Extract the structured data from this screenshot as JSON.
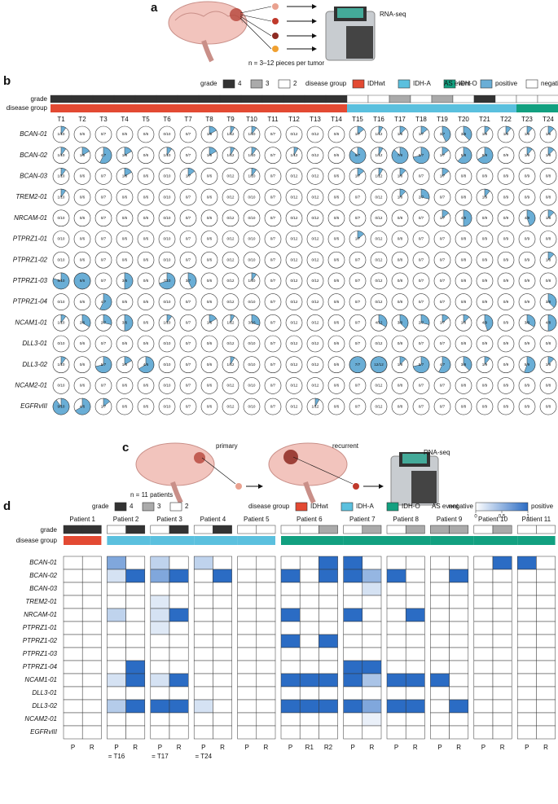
{
  "panel_a": {
    "label": "a",
    "method": "RNA-seq",
    "note": "n = 3–12 pieces per tumor"
  },
  "panel_b": {
    "label": "b",
    "legend": {
      "grade_title": "grade",
      "grades": [
        {
          "label": "4",
          "color": "#333333"
        },
        {
          "label": "3",
          "color": "#aaaaaa"
        },
        {
          "label": "2",
          "color": "#ffffff"
        }
      ],
      "group_title": "disease group",
      "groups": [
        {
          "label": "IDHwt",
          "color": "#e34a33"
        },
        {
          "label": "IDH-A",
          "color": "#5bc0de"
        },
        {
          "label": "IDH-O",
          "color": "#12a080"
        }
      ],
      "event_title": "AS event",
      "events": [
        {
          "label": "positive",
          "color": "#6aaed6"
        },
        {
          "label": "negative",
          "color": "#ffffff"
        }
      ]
    },
    "row_grade": "grade",
    "row_group": "disease group",
    "tumors": [
      "T1",
      "T2",
      "T3",
      "T4",
      "T5",
      "T6",
      "T7",
      "T8",
      "T9",
      "T10",
      "T11",
      "T12",
      "T13",
      "T14",
      "T15",
      "T16",
      "T17",
      "T18",
      "T19",
      "T20",
      "T21",
      "T22",
      "T23",
      "T24"
    ],
    "grade": [
      "4",
      "4",
      "4",
      "4",
      "4",
      "4",
      "4",
      "4",
      "4",
      "4",
      "4",
      "4",
      "4",
      "4",
      "2",
      "2",
      "3",
      "2",
      "3",
      "2",
      "4",
      "2",
      "2",
      "2"
    ],
    "group": [
      "IDHwt",
      "IDHwt",
      "IDHwt",
      "IDHwt",
      "IDHwt",
      "IDHwt",
      "IDHwt",
      "IDHwt",
      "IDHwt",
      "IDHwt",
      "IDHwt",
      "IDHwt",
      "IDHwt",
      "IDHwt",
      "IDH-A",
      "IDH-A",
      "IDH-A",
      "IDH-A",
      "IDH-A",
      "IDH-A",
      "IDH-A",
      "IDH-A",
      "IDH-O",
      "IDH-O"
    ],
    "genes": [
      "BCAN-01",
      "BCAN-02",
      "BCAN-03",
      "TREM2-01",
      "NRCAM-01",
      "PTPRZ1-01",
      "PTPRZ1-02",
      "PTPRZ1-03",
      "PTPRZ1-04",
      "NCAM1-01",
      "DLL3-01",
      "DLL3-02",
      "NCAM2-01",
      "EGFRvIII"
    ],
    "pies": [
      [
        "1/10",
        "0/6",
        "0/7",
        "0/6",
        "0/6",
        "0/10",
        "0/7",
        "1/6",
        "1/12",
        "1/10",
        "0/7",
        "0/12",
        "0/12",
        "0/6",
        "1/7",
        "1/12",
        "1/8",
        "1/7",
        "3/7",
        "3/8",
        "1/9",
        "1/9",
        "1/9",
        "1/8"
      ],
      [
        "1/10",
        "1/6",
        "4/7",
        "1/6",
        "0/6",
        "1/10",
        "0/7",
        "1/6",
        "1/12",
        "1/10",
        "0/7",
        "1/12",
        "0/12",
        "0/6",
        "6/7",
        "1/12",
        "7/8",
        "5/7",
        "1/7",
        "5/8",
        "6/9",
        "0/9",
        "1/9",
        "1/8"
      ],
      [
        "1/10",
        "0/6",
        "0/7",
        "1/6",
        "0/6",
        "0/10",
        "1/7",
        "0/6",
        "0/12",
        "1/10",
        "0/7",
        "0/12",
        "0/12",
        "0/6",
        "1/7",
        "1/12",
        "1/8",
        "0/7",
        "1/7",
        "0/8",
        "0/9",
        "0/9",
        "0/9",
        "0/8"
      ],
      [
        "1/10",
        "0/6",
        "0/7",
        "0/6",
        "0/6",
        "0/10",
        "0/7",
        "0/6",
        "0/12",
        "0/10",
        "0/7",
        "0/12",
        "0/12",
        "0/6",
        "0/7",
        "0/12",
        "1/8",
        "2/7",
        "0/7",
        "0/8",
        "1/9",
        "0/9",
        "0/9",
        "0/8"
      ],
      [
        "0/10",
        "0/6",
        "0/7",
        "0/6",
        "0/6",
        "0/10",
        "0/7",
        "0/6",
        "0/12",
        "0/10",
        "0/7",
        "0/12",
        "0/12",
        "0/6",
        "0/7",
        "0/12",
        "0/8",
        "0/7",
        "1/7",
        "4/8",
        "0/9",
        "0/9",
        "4/9",
        "1/8"
      ],
      [
        "0/10",
        "0/6",
        "0/7",
        "0/6",
        "0/6",
        "0/10",
        "0/7",
        "0/6",
        "0/12",
        "0/10",
        "0/7",
        "0/12",
        "0/12",
        "0/6",
        "1/7",
        "0/12",
        "0/8",
        "0/7",
        "0/7",
        "0/8",
        "0/9",
        "0/9",
        "0/9",
        "0/8"
      ],
      [
        "0/10",
        "0/6",
        "0/7",
        "0/6",
        "0/6",
        "0/10",
        "0/7",
        "0/6",
        "0/12",
        "0/10",
        "0/7",
        "0/12",
        "0/12",
        "0/6",
        "0/7",
        "0/12",
        "0/8",
        "0/7",
        "0/7",
        "0/8",
        "0/9",
        "0/9",
        "0/9",
        "1/8"
      ],
      [
        "8/10",
        "6/6",
        "0/7",
        "3/6",
        "0/6",
        "7/10",
        "3/7",
        "0/6",
        "0/12",
        "1/10",
        "0/7",
        "0/12",
        "0/12",
        "0/6",
        "0/7",
        "0/12",
        "0/8",
        "0/7",
        "0/7",
        "0/8",
        "0/9",
        "0/9",
        "0/9",
        "0/8"
      ],
      [
        "0/10",
        "0/6",
        "4/7",
        "0/6",
        "0/6",
        "0/10",
        "0/7",
        "0/6",
        "0/12",
        "0/10",
        "0/7",
        "0/12",
        "0/12",
        "0/6",
        "0/7",
        "0/12",
        "0/8",
        "0/7",
        "0/7",
        "0/8",
        "0/9",
        "0/9",
        "0/9",
        "3/8"
      ],
      [
        "1/10",
        "2/6",
        "2/7",
        "3/6",
        "0/6",
        "1/10",
        "0/7",
        "1/6",
        "1/12",
        "3/10",
        "0/7",
        "0/12",
        "0/12",
        "0/6",
        "0/7",
        "4/12",
        "3/8",
        "2/7",
        "1/7",
        "1/8",
        "4/9",
        "0/9",
        "3/9",
        "4/8"
      ],
      [
        "0/10",
        "0/6",
        "0/7",
        "0/6",
        "0/6",
        "0/10",
        "0/7",
        "0/6",
        "0/12",
        "0/10",
        "0/7",
        "0/12",
        "0/12",
        "0/6",
        "0/7",
        "0/12",
        "0/8",
        "0/7",
        "0/7",
        "0/8",
        "0/9",
        "0/9",
        "0/9",
        "0/8"
      ],
      [
        "1/10",
        "0/6",
        "5/7",
        "1/6",
        "4/6",
        "0/10",
        "0/7",
        "0/6",
        "1/12",
        "0/10",
        "0/7",
        "0/12",
        "0/12",
        "0/6",
        "7/7",
        "12/12",
        "1/8",
        "5/7",
        "4/7",
        "3/8",
        "1/9",
        "0/9",
        "5/9",
        "1/8"
      ],
      [
        "0/10",
        "0/6",
        "0/7",
        "0/6",
        "0/6",
        "0/10",
        "0/7",
        "0/6",
        "0/12",
        "0/10",
        "0/7",
        "0/12",
        "0/12",
        "0/6",
        "0/7",
        "0/12",
        "0/8",
        "0/7",
        "0/7",
        "0/8",
        "0/9",
        "0/9",
        "0/9",
        "0/8"
      ],
      [
        "9/10",
        "4/6",
        "1/7",
        "0/6",
        "0/6",
        "0/10",
        "0/7",
        "0/6",
        "0/12",
        "0/10",
        "0/7",
        "0/12",
        "1/12",
        "0/6",
        "0/7",
        "0/12",
        "0/8",
        "0/7",
        "0/7",
        "0/8",
        "0/9",
        "0/9",
        "0/9",
        "0/8"
      ]
    ]
  },
  "panel_c": {
    "label": "c",
    "primary": "primary",
    "recurrent": "recurrent",
    "method": "RNA-seq",
    "note": "n = 11 patients"
  },
  "panel_d": {
    "label": "d",
    "legend": {
      "grade_title": "grade",
      "grades": [
        {
          "label": "4",
          "color": "#333333"
        },
        {
          "label": "3",
          "color": "#aaaaaa"
        },
        {
          "label": "2",
          "color": "#ffffff"
        }
      ],
      "group_title": "disease group",
      "groups": [
        {
          "label": "IDHwt",
          "color": "#e34a33"
        },
        {
          "label": "IDH-A",
          "color": "#5bc0de"
        },
        {
          "label": "IDH-O",
          "color": "#12a080"
        }
      ],
      "event_title": "AS event",
      "low": "negative",
      "high": "positive",
      "range": [
        0,
        1
      ],
      "ticks": [
        0,
        0.5,
        1
      ],
      "colors": [
        "#ffffff",
        "#2b6cc4"
      ]
    },
    "row_grade": "grade",
    "row_group": "disease group",
    "patients": [
      {
        "name": "Patient 1",
        "samples": [
          "P",
          "R"
        ],
        "grade": [
          "4",
          "4"
        ],
        "group": "IDHwt"
      },
      {
        "name": "Patient 2",
        "samples": [
          "P",
          "R"
        ],
        "grade": [
          "2",
          "4"
        ],
        "group": "IDH-A",
        "note": "= T16"
      },
      {
        "name": "Patient 3",
        "samples": [
          "P",
          "R"
        ],
        "grade": [
          "2",
          "4"
        ],
        "group": "IDH-A",
        "note": "= T17"
      },
      {
        "name": "Patient 4",
        "samples": [
          "P",
          "R"
        ],
        "grade": [
          "2",
          "4"
        ],
        "group": "IDH-A",
        "note": "= T24"
      },
      {
        "name": "Patient 5",
        "samples": [
          "P",
          "R"
        ],
        "grade": [
          "2",
          "2"
        ],
        "group": "IDH-A"
      },
      {
        "name": "Patient 6",
        "samples": [
          "P",
          "R1",
          "R2"
        ],
        "grade": [
          "2",
          "2",
          "3"
        ],
        "group": "IDH-O"
      },
      {
        "name": "Patient 7",
        "samples": [
          "P",
          "R"
        ],
        "grade": [
          "2",
          "3"
        ],
        "group": "IDH-O"
      },
      {
        "name": "Patient 8",
        "samples": [
          "P",
          "R"
        ],
        "grade": [
          "2",
          "3"
        ],
        "group": "IDH-O"
      },
      {
        "name": "Patient 9",
        "samples": [
          "P",
          "R"
        ],
        "grade": [
          "3",
          "3"
        ],
        "group": "IDH-O"
      },
      {
        "name": "Patient 10",
        "samples": [
          "P",
          "R"
        ],
        "grade": [
          "2",
          "3"
        ],
        "group": "IDH-O"
      },
      {
        "name": "Patient 11",
        "samples": [
          "P",
          "R"
        ],
        "grade": [
          "2",
          "2"
        ],
        "group": "IDH-O"
      }
    ],
    "genes": [
      "BCAN-01",
      "BCAN-02",
      "BCAN-03",
      "TREM2-01",
      "NRCAM-01",
      "PTPRZ1-01",
      "PTPRZ1-02",
      "PTPRZ1-03",
      "PTPRZ1-04",
      "NCAM1-01",
      "DLL3-01",
      "DLL3-02",
      "NCAM2-01",
      "EGFRvIII"
    ],
    "values": [
      [
        0,
        0,
        0.6,
        0,
        0.3,
        0,
        0.3,
        0,
        0,
        0,
        0,
        0,
        1,
        1,
        0,
        0,
        0,
        0,
        0,
        0,
        1,
        1,
        0
      ],
      [
        0,
        0,
        0.2,
        1,
        0.6,
        1,
        0,
        1,
        0,
        0,
        1,
        0,
        1,
        1,
        0.5,
        1,
        0,
        0,
        1,
        0,
        0,
        0,
        0
      ],
      [
        0,
        0,
        0,
        0,
        0,
        0,
        0,
        0,
        0,
        0,
        0,
        0,
        0,
        0,
        0.2,
        0,
        0,
        0,
        0,
        0,
        0,
        0,
        0
      ],
      [
        0,
        0,
        0,
        0,
        0.15,
        0,
        0,
        0,
        0,
        0,
        0,
        0,
        0,
        0,
        0,
        0,
        0,
        0,
        0,
        0,
        0,
        0,
        0
      ],
      [
        0,
        0,
        0.3,
        0,
        0.2,
        1,
        0,
        0,
        0,
        0,
        1,
        0,
        0,
        1,
        0,
        0,
        1,
        0,
        0,
        0,
        0,
        0,
        0
      ],
      [
        0,
        0,
        0,
        0,
        0.15,
        0,
        0,
        0,
        0,
        0,
        0,
        0,
        0,
        0,
        0,
        0,
        0,
        0,
        0,
        0,
        0,
        0,
        0
      ],
      [
        0,
        0,
        0,
        0,
        0,
        0,
        0,
        0,
        0,
        0,
        1,
        0,
        1,
        0,
        0,
        0,
        0,
        0,
        0,
        0,
        0,
        0,
        0
      ],
      [
        0,
        0,
        0,
        0,
        0,
        0,
        0,
        0,
        0,
        0,
        0,
        0,
        0,
        0,
        0,
        0,
        0,
        0,
        0,
        0,
        0,
        0,
        0
      ],
      [
        0,
        0,
        0,
        1,
        0,
        0,
        0,
        0,
        0,
        0,
        0,
        0,
        0,
        1,
        1,
        0,
        0,
        0,
        0,
        0,
        0,
        0,
        0
      ],
      [
        0,
        0,
        0.2,
        1,
        0.2,
        1,
        0,
        0,
        0,
        0,
        1,
        1,
        1,
        1,
        0.4,
        1,
        1,
        1,
        0,
        0,
        0,
        0,
        0
      ],
      [
        0,
        0,
        0,
        0,
        0,
        0,
        0,
        0,
        0,
        0,
        0,
        0,
        0,
        0,
        0,
        0,
        0,
        0,
        0,
        0,
        0,
        0,
        0
      ],
      [
        0,
        0,
        0.35,
        1,
        1,
        1,
        0.2,
        0,
        0,
        0,
        1,
        1,
        1,
        1,
        0.6,
        1,
        1,
        0,
        1,
        0,
        0,
        0,
        0
      ],
      [
        0,
        0,
        0,
        0,
        0,
        0,
        0,
        0,
        0,
        0,
        0,
        0,
        0,
        0,
        0.1,
        0,
        0,
        0,
        0,
        0,
        0,
        0,
        0
      ],
      [
        0,
        0,
        0,
        0,
        0,
        0,
        0,
        0,
        0,
        0,
        0,
        0,
        0,
        0,
        0,
        0,
        0,
        0,
        0,
        0,
        0,
        0,
        0
      ]
    ]
  }
}
